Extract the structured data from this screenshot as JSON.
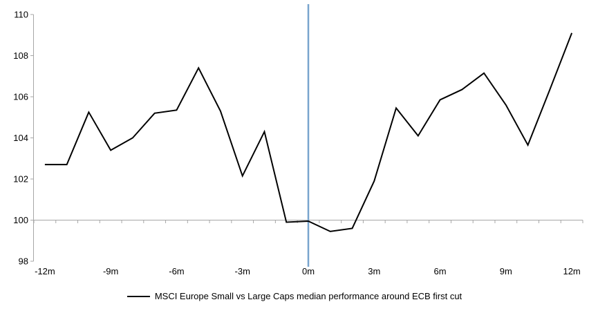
{
  "chart_data": {
    "type": "line",
    "categories": [
      "-12m",
      "-11m",
      "-10m",
      "-9m",
      "-8m",
      "-7m",
      "-6m",
      "-5m",
      "-4m",
      "-3m",
      "-2m",
      "-1m",
      "0m",
      "1m",
      "2m",
      "3m",
      "4m",
      "5m",
      "6m",
      "7m",
      "8m",
      "9m",
      "10m",
      "11m",
      "12m"
    ],
    "values": [
      102.7,
      102.7,
      105.25,
      103.4,
      104.0,
      105.2,
      105.35,
      107.4,
      105.3,
      102.15,
      104.3,
      99.9,
      99.95,
      99.45,
      99.6,
      101.9,
      105.45,
      104.1,
      105.85,
      106.35,
      107.15,
      105.6,
      103.65,
      106.35,
      109.1
    ],
    "series_name": "MSCI Europe Small vs Large Caps median performance around ECB first cut",
    "ylim": [
      98,
      110
    ],
    "yticks": [
      110,
      108,
      106,
      104,
      102,
      100,
      98
    ],
    "xticks": [
      {
        "label": "-12m",
        "index": 0
      },
      {
        "label": "-9m",
        "index": 3
      },
      {
        "label": "-6m",
        "index": 6
      },
      {
        "label": "-3m",
        "index": 9
      },
      {
        "label": "0m",
        "index": 12
      },
      {
        "label": "3m",
        "index": 15
      },
      {
        "label": "6m",
        "index": 18
      },
      {
        "label": "9m",
        "index": 21
      },
      {
        "label": "12m",
        "index": 24
      }
    ],
    "baseline": 100,
    "event_line": {
      "category_index": 12,
      "color": "#78A4CD"
    },
    "legend": {
      "label": "MSCI Europe Small vs Large Caps median performance around ECB first cut",
      "position": "bottom-center"
    },
    "colors": {
      "series": "#000000",
      "axis": "#A6A6A6",
      "text": "#000000"
    },
    "grid": false
  }
}
